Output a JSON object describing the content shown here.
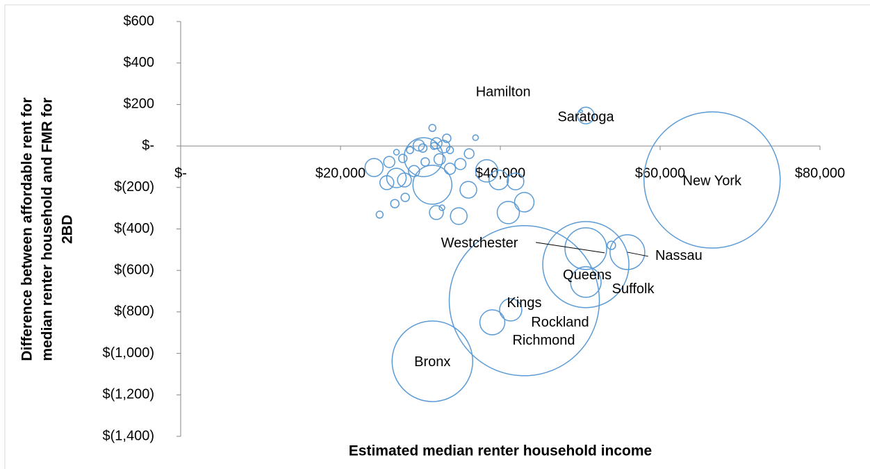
{
  "chart_data": {
    "type": "bubble",
    "xlabel": "Estimated median renter household  income",
    "ylabel": [
      "Difference between affordable rent for",
      "median renter household and FMR for",
      "2BD"
    ],
    "color": "#5b9bd5",
    "xlim": [
      0,
      80000
    ],
    "ylim": [
      -1400,
      600
    ],
    "xticks": [
      {
        "value": 0,
        "label": "$-"
      },
      {
        "value": 20000,
        "label": "$20,000"
      },
      {
        "value": 40000,
        "label": "$40,000"
      },
      {
        "value": 60000,
        "label": "$60,000"
      },
      {
        "value": 80000,
        "label": "$80,000"
      }
    ],
    "yticks": [
      {
        "value": 600,
        "label": "$600"
      },
      {
        "value": 400,
        "label": "$400"
      },
      {
        "value": 200,
        "label": "$200"
      },
      {
        "value": 0,
        "label": "$-"
      },
      {
        "value": -200,
        "label": "$(200)"
      },
      {
        "value": -400,
        "label": "$(400)"
      },
      {
        "value": -600,
        "label": "$(600)"
      },
      {
        "value": -800,
        "label": "$(800)"
      },
      {
        "value": -1000,
        "label": "$(1,000)"
      },
      {
        "value": -1200,
        "label": "$(1,200)"
      },
      {
        "value": -1400,
        "label": "$(1,400)"
      }
    ],
    "labels": [
      "Hamilton",
      "Saratoga",
      "New York",
      "Westchester",
      "Queens",
      "Nassau",
      "Suffolk",
      "Kings",
      "Rockland",
      "Richmond",
      "Bronx",
      null,
      null,
      null,
      null,
      null,
      null,
      null,
      null,
      null,
      null,
      null,
      null,
      null,
      null,
      null,
      null,
      null,
      null,
      null,
      null,
      null,
      null,
      null,
      null,
      null,
      null,
      null,
      null,
      null,
      null,
      null,
      null,
      null,
      null,
      null,
      null,
      null,
      null
    ],
    "x": [
      50100,
      50700,
      66500,
      50700,
      50700,
      55900,
      50700,
      43000,
      41300,
      39000,
      31500,
      53900,
      30400,
      31500,
      38300,
      39800,
      41900,
      36000,
      43000,
      41000,
      34800,
      32000,
      24200,
      25800,
      27000,
      28000,
      26100,
      29200,
      28100,
      26800,
      24900,
      29800,
      31500,
      32000,
      32900,
      33300,
      36900,
      36100,
      33700,
      32400,
      35000,
      33700,
      30600,
      28700,
      27800,
      27000,
      32700,
      30300,
      31700
    ],
    "values": [
      167,
      147,
      -164,
      -495,
      -572,
      -512,
      -656,
      -746,
      -790,
      -850,
      -1038,
      -479,
      -54,
      -187,
      -120,
      -164,
      -171,
      -211,
      -271,
      -321,
      -338,
      -321,
      -104,
      -177,
      -154,
      -164,
      -77,
      -121,
      -248,
      -278,
      -331,
      3,
      87,
      13,
      -3,
      37,
      40,
      -37,
      -20,
      -64,
      -87,
      -110,
      -77,
      -20,
      -60,
      -30,
      -298,
      -10,
      0
    ],
    "sizes": [
      4,
      144,
      9604,
      900,
      3844,
      625,
      484,
      11664,
      256,
      324,
      3364,
      36,
      784,
      784,
      256,
      196,
      144,
      144,
      196,
      256,
      144,
      100,
      169,
      100,
      196,
      100,
      64,
      64,
      36,
      36,
      25,
      64,
      25,
      64,
      81,
      36,
      16,
      49,
      25,
      64,
      64,
      64,
      36,
      25,
      36,
      16,
      16,
      36,
      25
    ]
  }
}
